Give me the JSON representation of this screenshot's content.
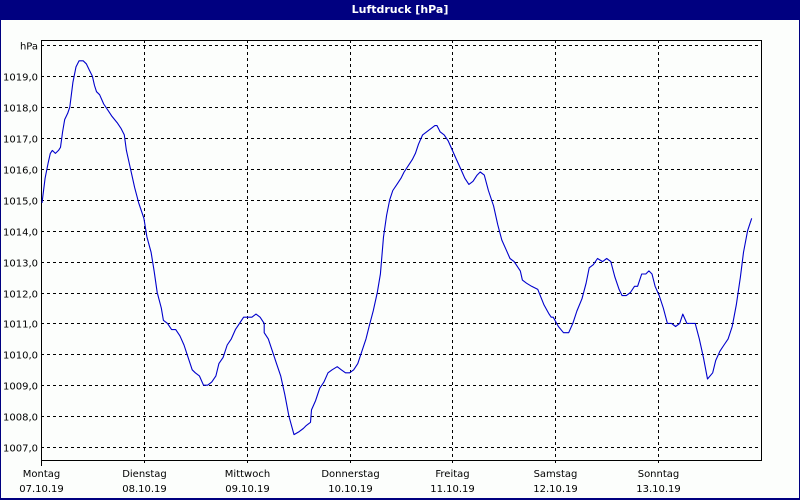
{
  "window": {
    "title": "Luftdruck [hPa]"
  },
  "colors": {
    "titlebar": "#000080",
    "line": "#0000cc",
    "grid": "#000000",
    "background": "#fcfefc"
  },
  "chart_data": {
    "type": "line",
    "title": "Luftdruck [hPa]",
    "xlabel": "",
    "ylabel": "hPa",
    "ylim": [
      1006.6,
      1019.9
    ],
    "yticks": [
      "1019,0",
      "1018,0",
      "1017,0",
      "1016,0",
      "1015,0",
      "1014,0",
      "1013,0",
      "1012,0",
      "1011,0",
      "1010,0",
      "1009,0",
      "1008,0",
      "1007,0"
    ],
    "ytick_values": [
      1019,
      1018,
      1017,
      1016,
      1015,
      1014,
      1013,
      1012,
      1011,
      1010,
      1009,
      1008,
      1007
    ],
    "y_unit_label": "hPa",
    "xticks": [
      {
        "day": "Montag",
        "date": "07.10.19"
      },
      {
        "day": "Dienstag",
        "date": "08.10.19"
      },
      {
        "day": "Mittwoch",
        "date": "09.10.19"
      },
      {
        "day": "Donnerstag",
        "date": "10.10.19"
      },
      {
        "day": "Freitag",
        "date": "11.10.19"
      },
      {
        "day": "Samstag",
        "date": "12.10.19"
      },
      {
        "day": "Sonntag",
        "date": "13.10.19"
      }
    ],
    "xlim_days": [
      0,
      7
    ],
    "grid": true,
    "legend": null,
    "series": [
      {
        "name": "Luftdruck",
        "x_days": [
          0.01,
          0.04,
          0.07,
          0.09,
          0.11,
          0.14,
          0.17,
          0.19,
          0.21,
          0.23,
          0.26,
          0.28,
          0.31,
          0.34,
          0.37,
          0.41,
          0.44,
          0.47,
          0.5,
          0.52,
          0.54,
          0.57,
          0.61,
          0.65,
          0.69,
          0.74,
          0.78,
          0.81,
          0.83,
          0.87,
          0.91,
          0.95,
          1.0,
          1.03,
          1.07,
          1.1,
          1.13,
          1.17,
          1.19,
          1.23,
          1.27,
          1.31,
          1.35,
          1.39,
          1.43,
          1.47,
          1.5,
          1.54,
          1.58,
          1.62,
          1.66,
          1.7,
          1.73,
          1.77,
          1.81,
          1.85,
          1.89,
          1.93,
          1.97,
          2.0,
          2.05,
          2.09,
          2.13,
          2.17,
          2.17,
          2.21,
          2.25,
          2.29,
          2.33,
          2.37,
          2.41,
          2.46,
          2.51,
          2.55,
          2.58,
          2.62,
          2.63,
          2.67,
          2.71,
          2.75,
          2.79,
          2.83,
          2.88,
          2.92,
          2.96,
          3.0,
          3.04,
          3.08,
          3.12,
          3.16,
          3.19,
          3.23,
          3.27,
          3.3,
          3.33,
          3.36,
          3.39,
          3.42,
          3.46,
          3.5,
          3.53,
          3.57,
          3.61,
          3.64,
          3.67,
          3.71,
          3.75,
          3.79,
          3.83,
          3.85,
          3.88,
          3.92,
          3.96,
          4.0,
          4.04,
          4.08,
          4.12,
          4.16,
          4.2,
          4.24,
          4.27,
          4.31,
          4.35,
          4.4,
          4.44,
          4.48,
          4.52,
          4.56,
          4.6,
          4.66,
          4.68,
          4.72,
          4.77,
          4.83,
          4.89,
          4.94,
          4.96,
          4.98,
          5.03,
          5.08,
          5.13,
          5.17,
          5.21,
          5.26,
          5.3,
          5.33,
          5.37,
          5.41,
          5.46,
          5.5,
          5.54,
          5.58,
          5.62,
          5.65,
          5.69,
          5.73,
          5.77,
          5.8,
          5.84,
          5.88,
          5.91,
          5.94,
          5.97,
          6.01,
          6.05,
          6.09,
          6.13,
          6.17,
          6.21,
          6.24,
          6.28,
          6.32,
          6.36,
          6.4,
          6.44,
          6.48,
          6.53,
          6.56,
          6.6,
          6.64,
          6.68,
          6.72,
          6.76,
          6.8,
          6.83,
          6.87,
          6.91,
          6.95,
          6.97
        ],
        "values": [
          1014.9,
          1015.7,
          1016.2,
          1016.5,
          1016.6,
          1016.5,
          1016.6,
          1016.7,
          1017.2,
          1017.6,
          1017.8,
          1018.0,
          1018.8,
          1019.3,
          1019.5,
          1019.5,
          1019.4,
          1019.2,
          1019.0,
          1018.7,
          1018.5,
          1018.4,
          1018.1,
          1017.9,
          1017.7,
          1017.5,
          1017.3,
          1017.1,
          1016.6,
          1016.0,
          1015.4,
          1014.9,
          1014.4,
          1013.8,
          1013.3,
          1012.7,
          1012.0,
          1011.5,
          1011.1,
          1011.0,
          1010.8,
          1010.8,
          1010.6,
          1010.3,
          1009.9,
          1009.5,
          1009.4,
          1009.3,
          1009.0,
          1009.0,
          1009.1,
          1009.3,
          1009.7,
          1009.9,
          1010.3,
          1010.5,
          1010.8,
          1011.0,
          1011.2,
          1011.2,
          1011.2,
          1011.3,
          1011.2,
          1011.0,
          1010.7,
          1010.5,
          1010.1,
          1009.7,
          1009.3,
          1008.7,
          1008.0,
          1007.4,
          1007.5,
          1007.6,
          1007.7,
          1007.8,
          1008.2,
          1008.5,
          1008.9,
          1009.1,
          1009.4,
          1009.5,
          1009.6,
          1009.5,
          1009.4,
          1009.4,
          1009.5,
          1009.7,
          1010.1,
          1010.5,
          1010.9,
          1011.4,
          1012.0,
          1012.6,
          1013.8,
          1014.5,
          1015.0,
          1015.3,
          1015.5,
          1015.7,
          1015.9,
          1016.1,
          1016.3,
          1016.5,
          1016.8,
          1017.1,
          1017.2,
          1017.3,
          1017.4,
          1017.4,
          1017.2,
          1017.1,
          1016.9,
          1016.6,
          1016.3,
          1016.0,
          1015.7,
          1015.5,
          1015.6,
          1015.8,
          1015.9,
          1015.8,
          1015.3,
          1014.8,
          1014.2,
          1013.7,
          1013.4,
          1013.1,
          1013.0,
          1012.7,
          1012.4,
          1012.3,
          1012.2,
          1012.1,
          1011.6,
          1011.3,
          1011.2,
          1011.2,
          1010.9,
          1010.7,
          1010.7,
          1011.0,
          1011.4,
          1011.8,
          1012.3,
          1012.8,
          1012.9,
          1013.1,
          1013.0,
          1013.1,
          1013.0,
          1012.5,
          1012.1,
          1011.9,
          1011.9,
          1012.0,
          1012.2,
          1012.2,
          1012.6,
          1012.6,
          1012.7,
          1012.6,
          1012.2,
          1011.9,
          1011.5,
          1011.0,
          1011.0,
          1010.9,
          1011.0,
          1011.3,
          1011.0,
          1011.0,
          1011.0,
          1010.5,
          1009.9,
          1009.2,
          1009.4,
          1009.8,
          1010.1,
          1010.3,
          1010.5,
          1010.9,
          1011.6,
          1012.5,
          1013.3,
          1014.0,
          1014.4
        ]
      }
    ]
  }
}
